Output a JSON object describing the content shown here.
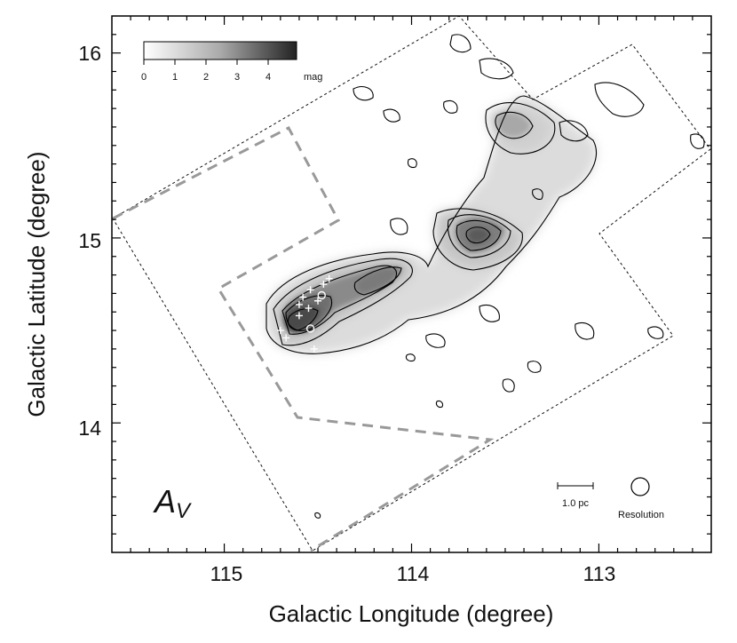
{
  "chart_data": {
    "type": "heatmap",
    "title": "",
    "xlabel": "Galactic Longitude (degree)",
    "ylabel": "Galactic Latitude (degree)",
    "xlim": [
      115.6,
      112.4
    ],
    "ylim": [
      13.3,
      16.2
    ],
    "x_ticks": [
      115,
      114,
      113
    ],
    "y_ticks": [
      14,
      15,
      16
    ],
    "panel_label": {
      "main": "A",
      "sub": "V"
    },
    "colorbar": {
      "ticks": [
        "0",
        "1",
        "2",
        "3",
        "4"
      ],
      "unit": "mag",
      "range": [
        0,
        5
      ]
    },
    "scalebar_label": "1.0 pc",
    "resolution_label": "Resolution",
    "grid": false,
    "colormap": "white-to-black grayscale with black contours",
    "extinction_peaks": [
      {
        "l": 114.6,
        "b": 14.55,
        "av": 4.8
      },
      {
        "l": 114.15,
        "b": 14.85,
        "av": 3.5
      },
      {
        "l": 113.65,
        "b": 15.0,
        "av": 3.2
      },
      {
        "l": 113.5,
        "b": 15.6,
        "av": 2.0
      },
      {
        "l": 113.2,
        "b": 15.5,
        "av": 1.5
      }
    ],
    "yso_positions": [
      {
        "l": 114.58,
        "b": 14.68
      },
      {
        "l": 114.54,
        "b": 14.72
      },
      {
        "l": 114.5,
        "b": 14.66
      },
      {
        "l": 114.55,
        "b": 14.62
      },
      {
        "l": 114.47,
        "b": 14.75
      },
      {
        "l": 114.44,
        "b": 14.78
      },
      {
        "l": 114.6,
        "b": 14.58
      },
      {
        "l": 114.7,
        "b": 14.5
      },
      {
        "l": 114.67,
        "b": 14.46
      },
      {
        "l": 114.52,
        "b": 14.4
      },
      {
        "l": 114.67,
        "b": 14.31
      },
      {
        "l": 114.6,
        "b": 14.64
      }
    ],
    "circle_markers": [
      {
        "l": 114.54,
        "b": 14.51
      },
      {
        "l": 114.48,
        "b": 14.69
      }
    ]
  }
}
